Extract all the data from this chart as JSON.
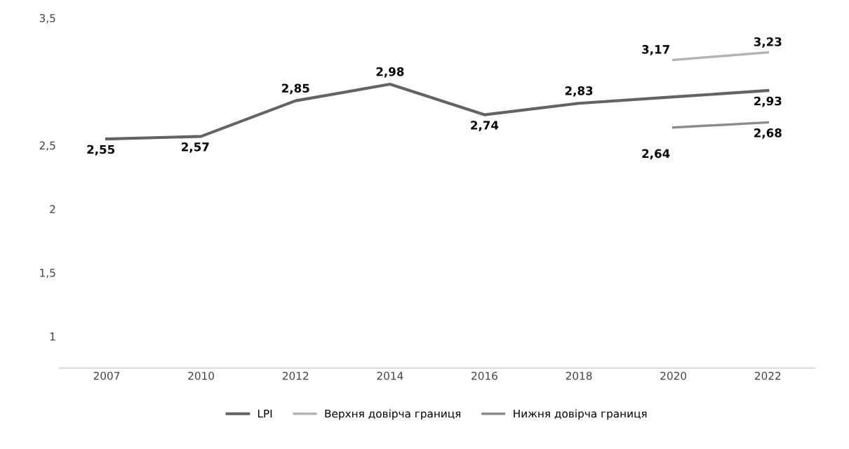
{
  "chart_data": {
    "type": "line",
    "categories": [
      "2007",
      "2010",
      "2012",
      "2014",
      "2016",
      "2018",
      "2020",
      "2022"
    ],
    "series": [
      {
        "name": "LPI",
        "color": "#636363",
        "values": [
          2.55,
          2.57,
          2.85,
          2.98,
          2.74,
          2.83,
          2.88,
          2.93
        ],
        "value_labels": [
          "2,55",
          "2,57",
          "2,85",
          "2,98",
          "2,74",
          "2,83",
          null,
          "2,93"
        ]
      },
      {
        "name": "Верхня довірча границя",
        "color": "#b4b4b4",
        "values": [
          null,
          null,
          null,
          null,
          null,
          null,
          3.17,
          3.23
        ],
        "value_labels": [
          null,
          null,
          null,
          null,
          null,
          null,
          "3,17",
          "3,23"
        ]
      },
      {
        "name": "Нижня довірча границя",
        "color": "#8c8c8c",
        "values": [
          null,
          null,
          null,
          null,
          null,
          null,
          2.64,
          2.68
        ],
        "value_labels": [
          null,
          null,
          null,
          null,
          null,
          null,
          "2,64",
          "2,68"
        ]
      }
    ],
    "ylim": [
      0.75,
      3.5
    ],
    "yticks": [
      {
        "value": 1,
        "label": "1"
      },
      {
        "value": 1.5,
        "label": "1,5"
      },
      {
        "value": 2,
        "label": "2"
      },
      {
        "value": 2.5,
        "label": "2,5"
      },
      {
        "value": 3.5,
        "label": "3,5"
      }
    ],
    "grid": false,
    "legend": "bottom",
    "marker": "none",
    "line_style": "solid"
  }
}
